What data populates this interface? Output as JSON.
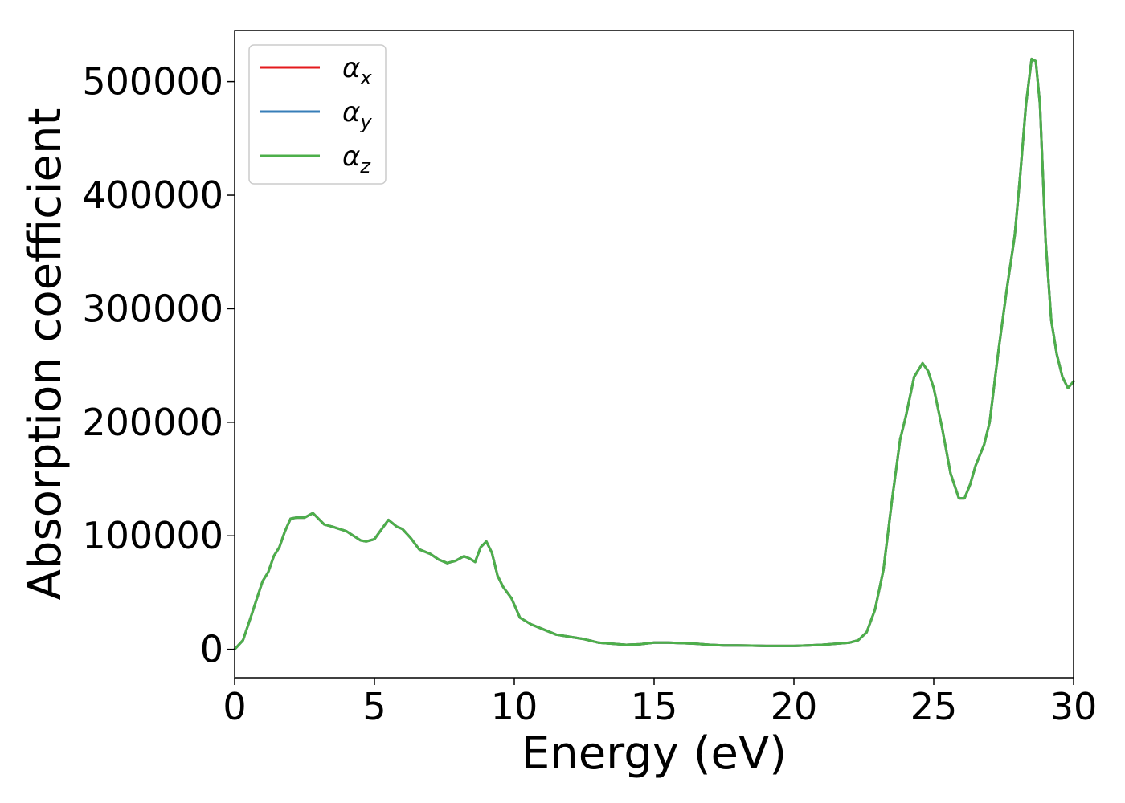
{
  "chart_data": {
    "type": "line",
    "title": "",
    "xlabel": "Energy (eV)",
    "ylabel": "Absorption coefficient",
    "xlim": [
      0,
      30
    ],
    "ylim": [
      -25000,
      545000
    ],
    "xticks": [
      0,
      5,
      10,
      15,
      20,
      25,
      30
    ],
    "yticks": [
      0,
      100000,
      200000,
      300000,
      400000,
      500000
    ],
    "grid": false,
    "legend": "top-left",
    "legend_entries": [
      {
        "symbol": "α",
        "sub": "x",
        "color": "#e41a1c"
      },
      {
        "symbol": "α",
        "sub": "y",
        "color": "#377eb8"
      },
      {
        "symbol": "α",
        "sub": "z",
        "color": "#4daf4a"
      }
    ],
    "x": [
      0,
      0.3,
      0.6,
      0.8,
      1.0,
      1.2,
      1.4,
      1.6,
      1.8,
      2.0,
      2.2,
      2.5,
      2.8,
      3.0,
      3.2,
      3.5,
      4.0,
      4.5,
      4.7,
      5.0,
      5.2,
      5.5,
      5.8,
      6.0,
      6.3,
      6.6,
      7.0,
      7.3,
      7.6,
      7.9,
      8.2,
      8.4,
      8.6,
      8.8,
      9.0,
      9.2,
      9.4,
      9.6,
      9.9,
      10.2,
      10.6,
      11.0,
      11.5,
      12.0,
      12.5,
      13.0,
      13.5,
      14.0,
      14.5,
      15.0,
      15.5,
      16.0,
      16.5,
      17.0,
      17.5,
      18.0,
      18.5,
      19.0,
      19.5,
      20.0,
      20.5,
      21.0,
      21.5,
      22.0,
      22.3,
      22.6,
      22.9,
      23.2,
      23.5,
      23.8,
      24.0,
      24.3,
      24.6,
      24.8,
      25.0,
      25.3,
      25.6,
      25.9,
      26.1,
      26.3,
      26.5,
      26.8,
      27.0,
      27.3,
      27.6,
      27.9,
      28.1,
      28.3,
      28.5,
      28.65,
      28.8,
      29.0,
      29.2,
      29.4,
      29.6,
      29.8,
      30.0
    ],
    "series": [
      {
        "name": "α_x",
        "color": "#e41a1c",
        "values": [
          0,
          8000,
          30000,
          45000,
          60000,
          68000,
          82000,
          90000,
          104000,
          115000,
          116000,
          116000,
          120000,
          115000,
          110000,
          108000,
          104000,
          96000,
          95000,
          97000,
          104000,
          114000,
          108000,
          106000,
          98000,
          88000,
          84000,
          79000,
          76000,
          78000,
          82000,
          80000,
          77000,
          90000,
          95000,
          85000,
          65000,
          55000,
          45000,
          28000,
          22000,
          18000,
          13000,
          11000,
          9000,
          6000,
          5000,
          4000,
          4500,
          6000,
          6000,
          5500,
          5000,
          4000,
          3500,
          3500,
          3300,
          3000,
          3000,
          3000,
          3500,
          4000,
          5000,
          6000,
          8000,
          15000,
          35000,
          70000,
          130000,
          185000,
          205000,
          240000,
          252000,
          245000,
          230000,
          195000,
          155000,
          133000,
          133000,
          145000,
          162000,
          180000,
          200000,
          260000,
          315000,
          365000,
          420000,
          480000,
          520000,
          518000,
          480000,
          360000,
          290000,
          260000,
          240000,
          230000,
          236000
        ]
      },
      {
        "name": "α_y",
        "color": "#377eb8",
        "values": [
          0,
          8000,
          30000,
          45000,
          60000,
          68000,
          82000,
          90000,
          104000,
          115000,
          116000,
          116000,
          120000,
          115000,
          110000,
          108000,
          104000,
          96000,
          95000,
          97000,
          104000,
          114000,
          108000,
          106000,
          98000,
          88000,
          84000,
          79000,
          76000,
          78000,
          82000,
          80000,
          77000,
          90000,
          95000,
          85000,
          65000,
          55000,
          45000,
          28000,
          22000,
          18000,
          13000,
          11000,
          9000,
          6000,
          5000,
          4000,
          4500,
          6000,
          6000,
          5500,
          5000,
          4000,
          3500,
          3500,
          3300,
          3000,
          3000,
          3000,
          3500,
          4000,
          5000,
          6000,
          8000,
          15000,
          35000,
          70000,
          130000,
          185000,
          205000,
          240000,
          252000,
          245000,
          230000,
          195000,
          155000,
          133000,
          133000,
          145000,
          162000,
          180000,
          200000,
          260000,
          315000,
          365000,
          420000,
          480000,
          520000,
          518000,
          480000,
          360000,
          290000,
          260000,
          240000,
          230000,
          236000
        ]
      },
      {
        "name": "α_z",
        "color": "#4daf4a",
        "values": [
          0,
          8000,
          30000,
          45000,
          60000,
          68000,
          82000,
          90000,
          104000,
          115000,
          116000,
          116000,
          120000,
          115000,
          110000,
          108000,
          104000,
          96000,
          95000,
          97000,
          104000,
          114000,
          108000,
          106000,
          98000,
          88000,
          84000,
          79000,
          76000,
          78000,
          82000,
          80000,
          77000,
          90000,
          95000,
          85000,
          65000,
          55000,
          45000,
          28000,
          22000,
          18000,
          13000,
          11000,
          9000,
          6000,
          5000,
          4000,
          4500,
          6000,
          6000,
          5500,
          5000,
          4000,
          3500,
          3500,
          3300,
          3000,
          3000,
          3000,
          3500,
          4000,
          5000,
          6000,
          8000,
          15000,
          35000,
          70000,
          130000,
          185000,
          205000,
          240000,
          252000,
          245000,
          230000,
          195000,
          155000,
          133000,
          133000,
          145000,
          162000,
          180000,
          200000,
          260000,
          315000,
          365000,
          420000,
          480000,
          520000,
          518000,
          480000,
          360000,
          290000,
          260000,
          240000,
          230000,
          236000
        ]
      }
    ]
  }
}
